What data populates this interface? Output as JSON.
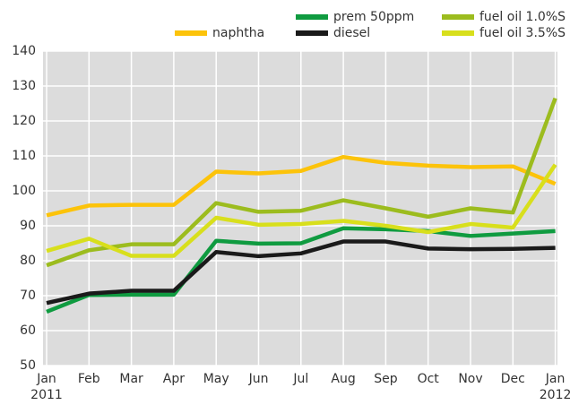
{
  "chart_data": {
    "type": "line",
    "categories": [
      "Jan\n2011",
      "Feb",
      "Mar",
      "Apr",
      "May",
      "Jun",
      "Jul",
      "Aug",
      "Sep",
      "Oct",
      "Nov",
      "Dec",
      "Jan\n2012"
    ],
    "series": [
      {
        "name": "naphtha",
        "color": "#fcc30a",
        "values": [
          93,
          95.8,
          96,
          96,
          105.5,
          105,
          105.7,
          109.7,
          108,
          107.2,
          106.8,
          107,
          102
        ]
      },
      {
        "name": "prem 50ppm",
        "color": "#0f9b40",
        "values": [
          65.4,
          70.2,
          70.3,
          70.3,
          85.7,
          84.9,
          85,
          89.3,
          89,
          88.5,
          87.1,
          87.8,
          88.5
        ]
      },
      {
        "name": "diesel",
        "color": "#1a1a1a",
        "values": [
          67.9,
          70.6,
          71.4,
          71.4,
          82.5,
          81.3,
          82.1,
          85.5,
          85.5,
          83.5,
          83.3,
          83.4,
          83.7
        ]
      },
      {
        "name": "fuel oil 1.0%S",
        "color": "#9cbc1e",
        "values": [
          78.7,
          83,
          84.7,
          84.7,
          96.5,
          94,
          94.3,
          97.3,
          95,
          92.6,
          95,
          93.8,
          126.5
        ]
      },
      {
        "name": "fuel oil 3.5%S",
        "color": "#d8df1c",
        "values": [
          82.8,
          86.3,
          81.4,
          81.4,
          92.3,
          90.3,
          90.5,
          91.4,
          90,
          88.2,
          90.5,
          89.5,
          107.5
        ]
      }
    ],
    "ylim": [
      50,
      140
    ],
    "yticks": [
      50,
      60,
      70,
      80,
      90,
      100,
      110,
      120,
      130,
      140
    ],
    "grid": true
  }
}
